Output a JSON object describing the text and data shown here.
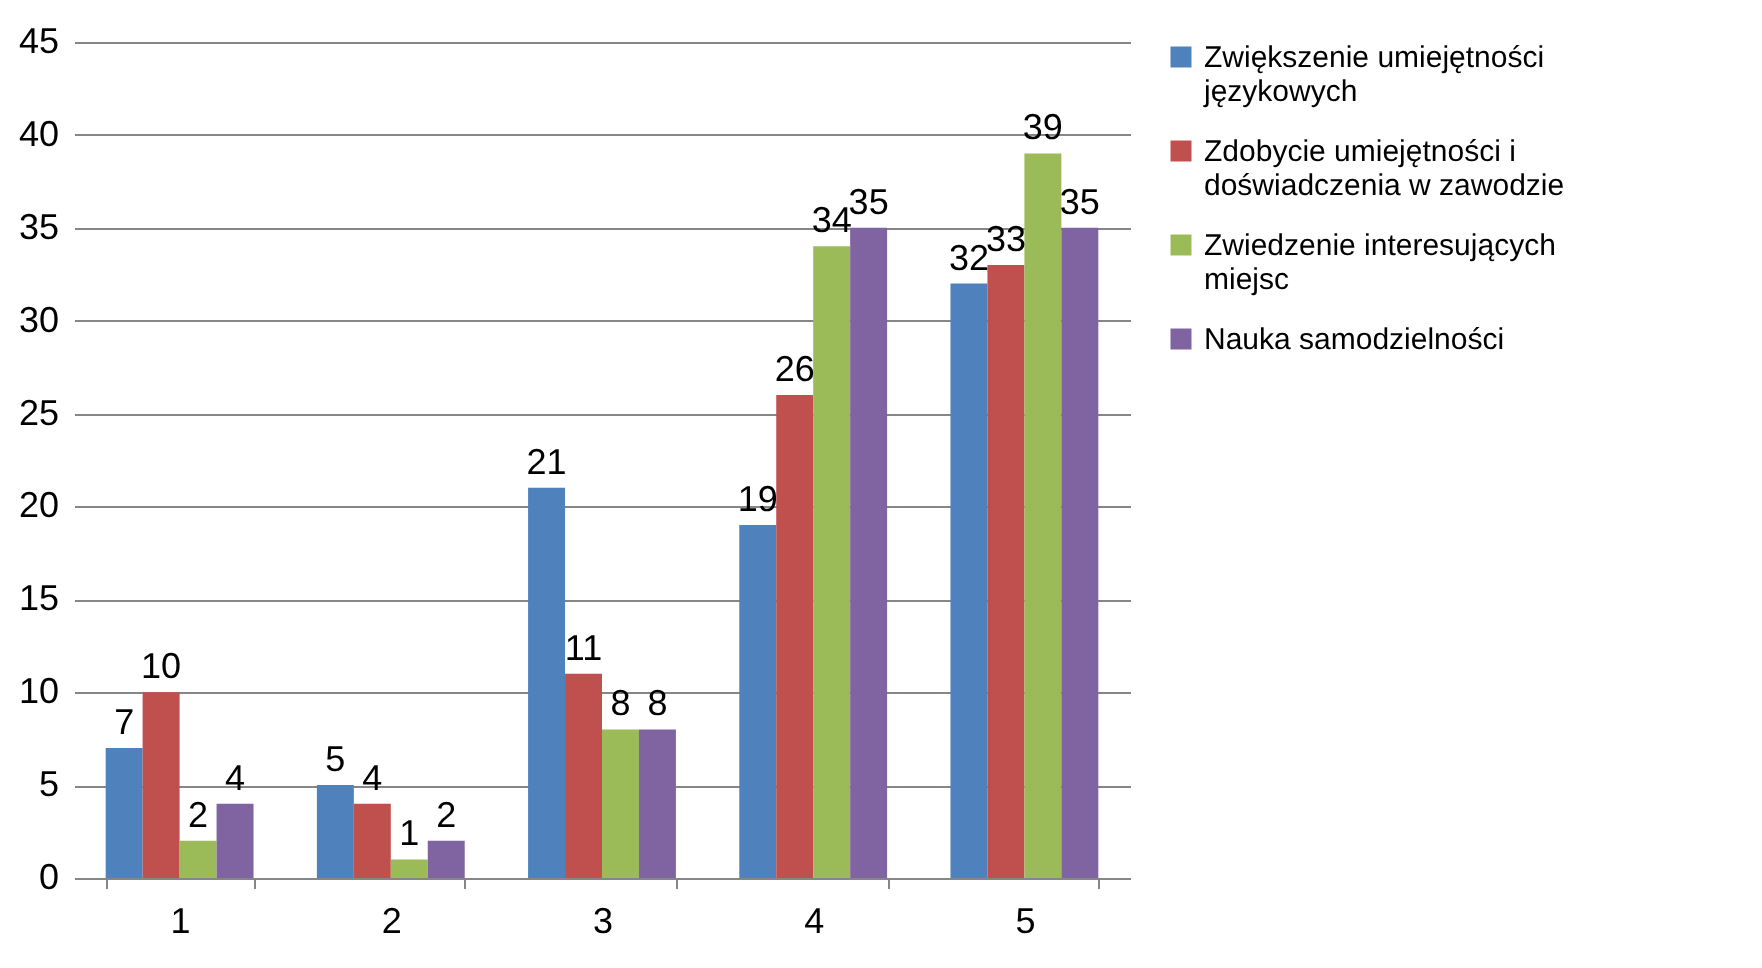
{
  "chart_data": {
    "type": "bar",
    "categories": [
      "1",
      "2",
      "3",
      "4",
      "5"
    ],
    "series": [
      {
        "name": "Zwiększenie umiejętności językowych",
        "color": "#4f81bd",
        "values": [
          7,
          5,
          21,
          19,
          32
        ]
      },
      {
        "name": "Zdobycie umiejętności i doświadczenia w zawodzie",
        "color": "#c0504d",
        "values": [
          10,
          4,
          11,
          26,
          33
        ]
      },
      {
        "name": "Zwiedzenie interesujących miejsc",
        "color": "#9bbb59",
        "values": [
          2,
          1,
          8,
          34,
          39
        ]
      },
      {
        "name": "Nauka samodzielności",
        "color": "#8064a2",
        "values": [
          4,
          2,
          8,
          35,
          35
        ]
      }
    ],
    "ylim": [
      0,
      45
    ],
    "yticks": [
      0,
      5,
      10,
      15,
      20,
      25,
      30,
      35,
      40,
      45
    ],
    "grid": "y",
    "legend": "right",
    "data_labels": true
  }
}
